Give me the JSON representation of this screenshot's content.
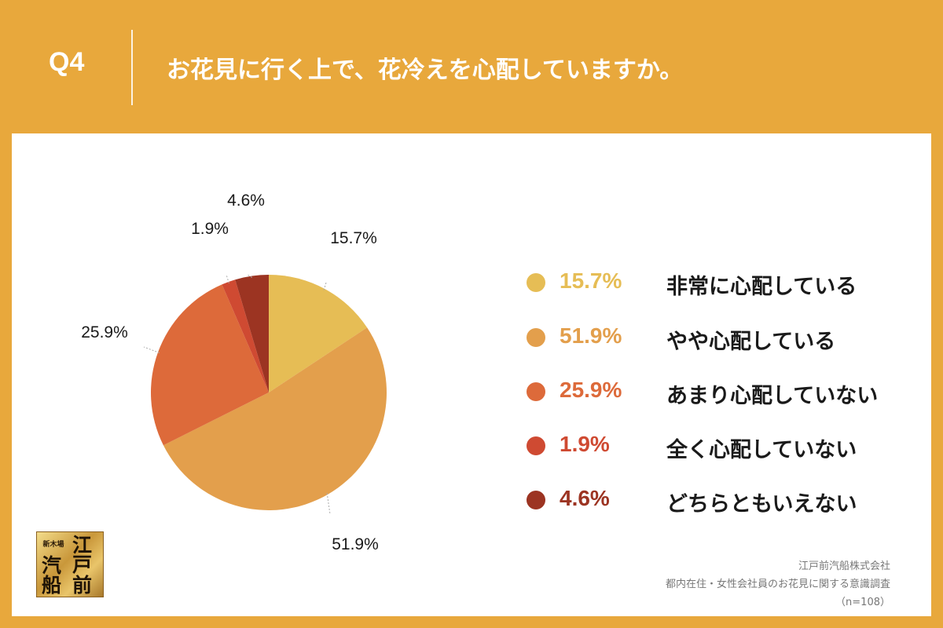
{
  "header": {
    "q_num": "Q4",
    "question": "お花見に行く上で、花冷えを心配していますか。"
  },
  "logo": {
    "small": "新木場",
    "chars": [
      "江",
      "戸",
      "汽",
      "船",
      "前"
    ]
  },
  "source": {
    "line1": "江戸前汽船株式会社",
    "line2": "都内在住・女性会社員のお花見に関する意識調査",
    "line3": "（n=108）"
  },
  "colors": {
    "background": "#e8a83c",
    "panel": "#ffffff"
  },
  "chart_data": {
    "type": "pie",
    "start": "12 o'clock, clockwise",
    "labels": [
      "非常に心配している",
      "やや心配している",
      "あまり心配していない",
      "全く心配していない",
      "どちらともいえない"
    ],
    "values": [
      15.7,
      51.9,
      25.9,
      1.9,
      4.6
    ],
    "value_labels": [
      "15.7%",
      "51.9%",
      "25.9%",
      "1.9%",
      "4.6%"
    ],
    "colors": [
      "#e6bd55",
      "#e39f4c",
      "#dd6a3a",
      "#cf4a32",
      "#9c3422"
    ],
    "legend_placement": "right"
  }
}
